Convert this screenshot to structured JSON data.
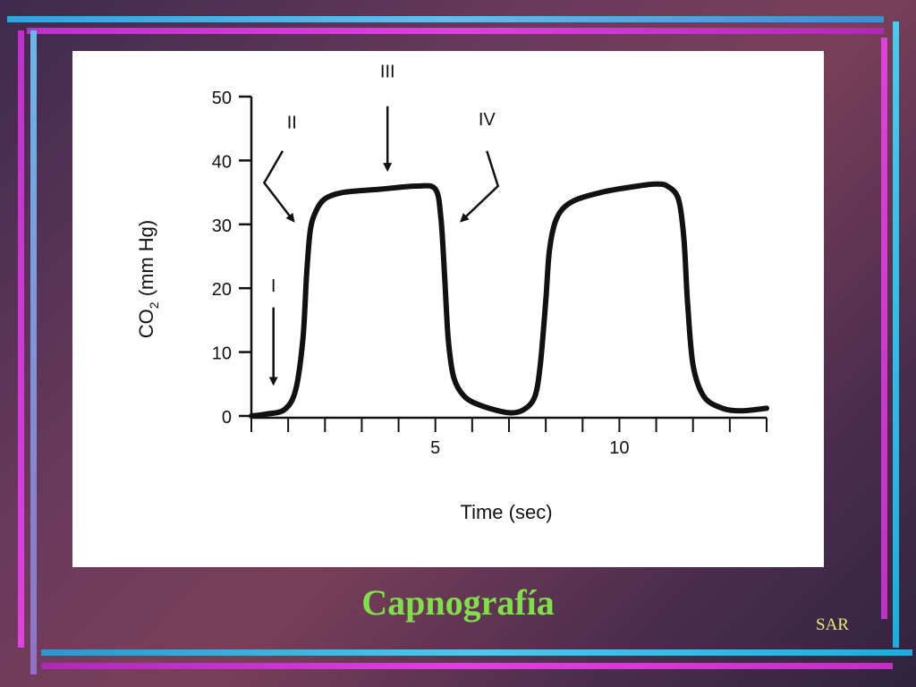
{
  "slide": {
    "title": "Capnografía",
    "footer": "SAR"
  },
  "chart_data": {
    "type": "line",
    "title": "",
    "xlabel": "Time (sec)",
    "ylabel_main": "CO",
    "ylabel_subscript": "2",
    "ylabel_unit": " (mm Hg)",
    "xlim": [
      0,
      14
    ],
    "ylim": [
      0,
      50
    ],
    "x_tick_labels": [
      {
        "value": 5,
        "label": "5"
      },
      {
        "value": 10,
        "label": "10"
      }
    ],
    "x_minor_ticks": [
      0,
      1,
      2,
      3,
      4,
      5,
      6,
      7,
      8,
      9,
      10,
      11,
      12,
      13,
      14
    ],
    "y_ticks": [
      0,
      10,
      20,
      30,
      40,
      50
    ],
    "grid": false,
    "series": [
      {
        "x": [
          0,
          0.4,
          0.9,
          1.2,
          1.4,
          1.5,
          1.6,
          1.75,
          2.0,
          2.5,
          3.5,
          4.5,
          5.0,
          5.15,
          5.25,
          5.35,
          5.5,
          5.8,
          6.3,
          7.0,
          7.4,
          7.7,
          7.85,
          8.0,
          8.1,
          8.3,
          8.7,
          9.5,
          10.5,
          11.0,
          11.3,
          11.6,
          11.75,
          11.85,
          12.0,
          12.3,
          12.8,
          13.3,
          14.0
        ],
        "values": [
          0,
          0.3,
          1,
          4,
          12,
          22,
          29,
          32,
          34,
          35,
          35.5,
          36,
          35.5,
          31,
          22,
          12,
          6,
          3,
          1.5,
          0.5,
          1,
          3,
          8,
          18,
          26,
          31,
          33.5,
          35,
          36,
          36.3,
          36,
          34,
          28,
          18,
          8,
          3,
          1.2,
          0.8,
          1.2
        ]
      }
    ],
    "annotations": [
      {
        "label": "I",
        "text_x": 0.6,
        "text_y": 19.5,
        "arrow": [
          [
            0.6,
            17
          ],
          [
            0.6,
            5
          ]
        ]
      },
      {
        "label": "II",
        "text_x": 1.1,
        "text_y": 45,
        "arrow": [
          [
            0.85,
            41.5
          ],
          [
            0.35,
            36.5
          ],
          [
            1.15,
            30.5
          ]
        ]
      },
      {
        "label": "III",
        "text_x": 3.7,
        "text_y": 53,
        "arrow": [
          [
            3.7,
            48.5
          ],
          [
            3.7,
            38.5
          ]
        ]
      },
      {
        "label": "IV",
        "text_x": 6.4,
        "text_y": 45.5,
        "arrow": [
          [
            6.4,
            41.5
          ],
          [
            6.7,
            36
          ],
          [
            5.7,
            30.5
          ]
        ]
      }
    ]
  }
}
